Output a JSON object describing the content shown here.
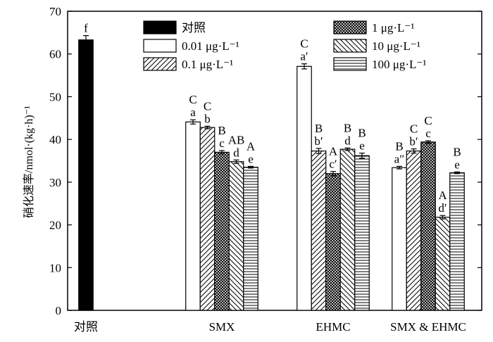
{
  "chart_data": {
    "type": "bar",
    "ylabel": "硝化速率/nmol·(kg·h)⁻¹",
    "ylim": [
      0,
      70
    ],
    "yticks": [
      0,
      10,
      20,
      30,
      40,
      50,
      60,
      70
    ],
    "groups": [
      "对照",
      "SMX",
      "EHMC",
      "SMX & EHMC"
    ],
    "legend_position": "top",
    "series": [
      {
        "name": "对照",
        "key": "control",
        "pattern": "solid-black"
      },
      {
        "name": "0.01 μg·L⁻¹",
        "key": "c001",
        "pattern": "white"
      },
      {
        "name": "0.1 μg·L⁻¹",
        "key": "c01",
        "pattern": "diagonal-up"
      },
      {
        "name": "1 μg·L⁻¹",
        "key": "c1",
        "pattern": "crosshatch"
      },
      {
        "name": "10 μg·L⁻¹",
        "key": "c10",
        "pattern": "diagonal-down"
      },
      {
        "name": "100 μg·L⁻¹",
        "key": "c100",
        "pattern": "horizontal"
      }
    ],
    "bars": [
      {
        "group": "对照",
        "series": "control",
        "value": 63.3,
        "error": 1.0,
        "labels": [
          "f"
        ]
      },
      {
        "group": "SMX",
        "series": "c001",
        "value": 44.1,
        "error": 0.5,
        "labels": [
          "C",
          "a"
        ]
      },
      {
        "group": "SMX",
        "series": "c01",
        "value": 42.8,
        "error": 0.3,
        "labels": [
          "C",
          "b"
        ]
      },
      {
        "group": "SMX",
        "series": "c1",
        "value": 37.0,
        "error": 0.4,
        "labels": [
          "B",
          "c"
        ]
      },
      {
        "group": "SMX",
        "series": "c10",
        "value": 34.8,
        "error": 0.4,
        "labels": [
          "AB",
          "d"
        ]
      },
      {
        "group": "SMX",
        "series": "c100",
        "value": 33.5,
        "error": 0.2,
        "labels": [
          "A",
          "e"
        ]
      },
      {
        "group": "EHMC",
        "series": "c001",
        "value": 57.1,
        "error": 0.6,
        "labels": [
          "C",
          "a′"
        ]
      },
      {
        "group": "EHMC",
        "series": "c01",
        "value": 37.3,
        "error": 0.6,
        "labels": [
          "B",
          "b′"
        ]
      },
      {
        "group": "EHMC",
        "series": "c1",
        "value": 32.0,
        "error": 0.5,
        "labels": [
          "A",
          "c′"
        ]
      },
      {
        "group": "EHMC",
        "series": "c10",
        "value": 37.7,
        "error": 0.3,
        "labels": [
          "B",
          "d"
        ]
      },
      {
        "group": "EHMC",
        "series": "c100",
        "value": 36.2,
        "error": 0.6,
        "labels": [
          "B",
          "e"
        ]
      },
      {
        "group": "SMX & EHMC",
        "series": "c001",
        "value": 33.4,
        "error": 0.3,
        "labels": [
          "B",
          "a″"
        ]
      },
      {
        "group": "SMX & EHMC",
        "series": "c01",
        "value": 37.3,
        "error": 0.5,
        "labels": [
          "C",
          "b′"
        ]
      },
      {
        "group": "SMX & EHMC",
        "series": "c1",
        "value": 39.4,
        "error": 0.3,
        "labels": [
          "C",
          "c"
        ]
      },
      {
        "group": "SMX & EHMC",
        "series": "c10",
        "value": 21.8,
        "error": 0.4,
        "labels": [
          "A",
          "d′"
        ]
      },
      {
        "group": "SMX & EHMC",
        "series": "c100",
        "value": 32.2,
        "error": 0.2,
        "labels": [
          "B",
          "e"
        ]
      }
    ]
  }
}
